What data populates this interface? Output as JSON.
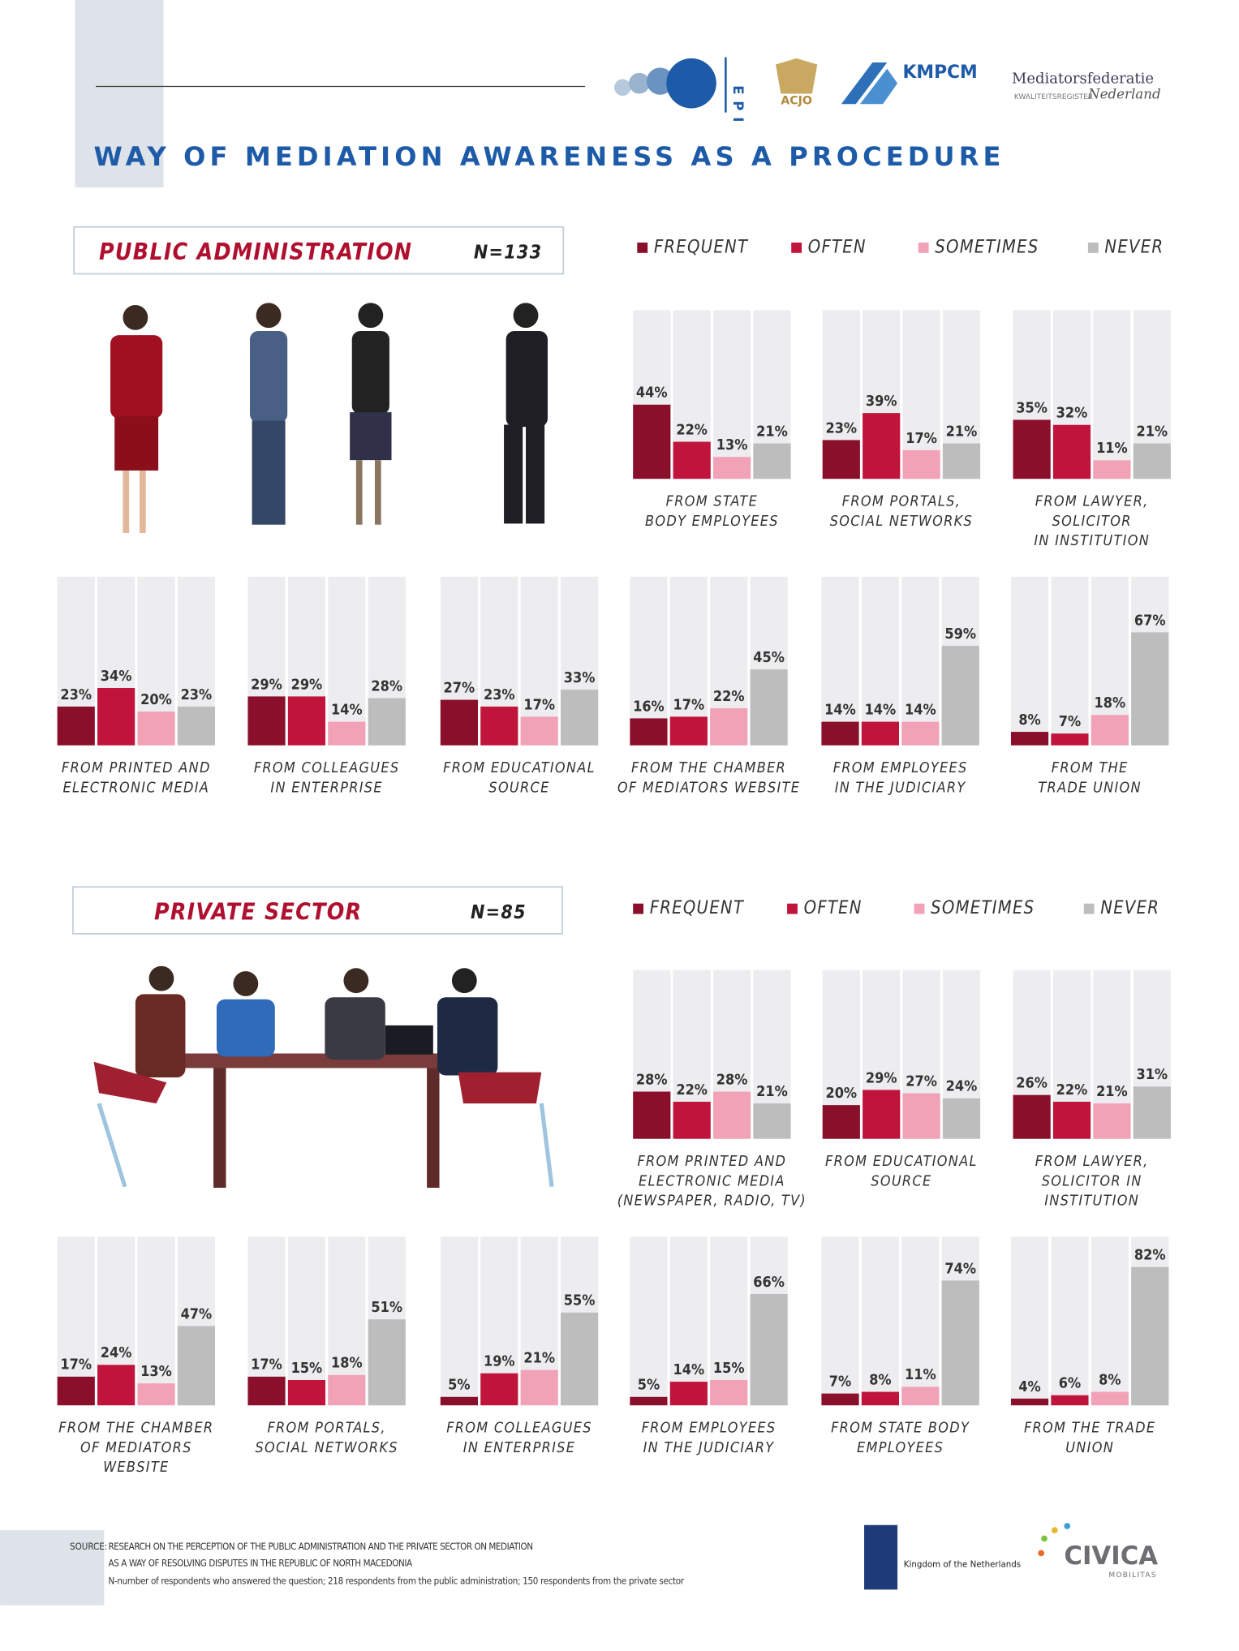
{
  "title": "WAY OF MEDIATION AWARENESS AS A PROCEDURE",
  "logos": {
    "epi": "EPI",
    "acjo": "ACJO",
    "kmpcm": "KMPCM",
    "mf_top": "Mediatorsfederatie",
    "mf_register": "KWALITEITSREGISTER",
    "mf_bottom": "Nederland",
    "netherlands": "Kingdom of the Netherlands",
    "civica": "CIVICA",
    "mobilitas": "MOBILITAS"
  },
  "sections": [
    {
      "name": "PUBLIC ADMINISTRATION",
      "n": "N=133",
      "legend": [
        {
          "name": "FREQUENT",
          "color": "#8a0f2b"
        },
        {
          "name": "OFTEN",
          "color": "#c0143c"
        },
        {
          "name": "SOMETIMES",
          "color": "#f2a2b7"
        },
        {
          "name": "NEVER",
          "color": "#bdbdbd"
        }
      ],
      "charts": [
        {
          "type": "bar",
          "title": [
            "FROM STATE",
            "BODY EMPLOYEES"
          ],
          "values": [
            44,
            22,
            13,
            21
          ],
          "value_labels": [
            "44%",
            "22%",
            "13%",
            "21%"
          ],
          "ylim": [
            0,
            100
          ]
        },
        {
          "type": "bar",
          "title": [
            "FROM PORTALS,",
            "SOCIAL NETWORKS"
          ],
          "values": [
            23,
            39,
            17,
            21
          ],
          "value_labels": [
            "23%",
            "39%",
            "17%",
            "21%"
          ],
          "ylim": [
            0,
            100
          ]
        },
        {
          "type": "bar",
          "title": [
            "FROM LAWYER,",
            "SOLICITOR",
            "IN INSTITUTION"
          ],
          "values": [
            35,
            32,
            11,
            21
          ],
          "value_labels": [
            "35%",
            "32%",
            "11%",
            "21%"
          ],
          "ylim": [
            0,
            100
          ]
        },
        {
          "type": "bar",
          "title": [
            "FROM PRINTED AND",
            "ELECTRONIC MEDIA"
          ],
          "values": [
            23,
            34,
            20,
            23
          ],
          "value_labels": [
            "23%",
            "34%",
            "20%",
            "23%"
          ],
          "ylim": [
            0,
            100
          ]
        },
        {
          "type": "bar",
          "title": [
            "FROM COLLEAGUES",
            "IN ENTERPRISE"
          ],
          "values": [
            29,
            29,
            14,
            28
          ],
          "value_labels": [
            "29%",
            "29%",
            "14%",
            "28%"
          ],
          "ylim": [
            0,
            100
          ]
        },
        {
          "type": "bar",
          "title": [
            "FROM EDUCATIONAL",
            "SOURCE"
          ],
          "values": [
            27,
            23,
            17,
            33
          ],
          "value_labels": [
            "27%",
            "23%",
            "17%",
            "33%"
          ],
          "ylim": [
            0,
            100
          ]
        },
        {
          "type": "bar",
          "title": [
            "FROM THE CHAMBER",
            "OF MEDIATORS WEBSITE"
          ],
          "values": [
            16,
            17,
            22,
            45
          ],
          "value_labels": [
            "16%",
            "17%",
            "22%",
            "45%"
          ],
          "ylim": [
            0,
            100
          ]
        },
        {
          "type": "bar",
          "title": [
            "FROM EMPLOYEES",
            "IN THE JUDICIARY"
          ],
          "values": [
            14,
            14,
            14,
            59
          ],
          "value_labels": [
            "14%",
            "14%",
            "14%",
            "59%"
          ],
          "ylim": [
            0,
            100
          ]
        },
        {
          "type": "bar",
          "title": [
            "FROM THE",
            "TRADE UNION"
          ],
          "values": [
            8,
            7,
            18,
            67
          ],
          "value_labels": [
            "8%",
            "7%",
            "18%",
            "67%"
          ],
          "ylim": [
            0,
            100
          ]
        }
      ]
    },
    {
      "name": "PRIVATE SECTOR",
      "n": "N=85",
      "legend": [
        {
          "name": "FREQUENT",
          "color": "#8a0f2b"
        },
        {
          "name": "OFTEN",
          "color": "#c0143c"
        },
        {
          "name": "SOMETIMES",
          "color": "#f2a2b7"
        },
        {
          "name": "NEVER",
          "color": "#bdbdbd"
        }
      ],
      "charts": [
        {
          "type": "bar",
          "title": [
            "FROM PRINTED AND",
            "ELECTRONIC MEDIA",
            "(NEWSPAPER, RADIO, TV)"
          ],
          "values": [
            28,
            22,
            28,
            21
          ],
          "value_labels": [
            "28%",
            "22%",
            "28%",
            "21%"
          ],
          "ylim": [
            0,
            100
          ]
        },
        {
          "type": "bar",
          "title": [
            "FROM EDUCATIONAL",
            "SOURCE"
          ],
          "values": [
            20,
            29,
            27,
            24
          ],
          "value_labels": [
            "20%",
            "29%",
            "27%",
            "24%"
          ],
          "ylim": [
            0,
            100
          ]
        },
        {
          "type": "bar",
          "title": [
            "FROM LAWYER,",
            "SOLICITOR IN",
            "INSTITUTION"
          ],
          "values": [
            26,
            22,
            21,
            31
          ],
          "value_labels": [
            "26%",
            "22%",
            "21%",
            "31%"
          ],
          "ylim": [
            0,
            100
          ]
        },
        {
          "type": "bar",
          "title": [
            "FROM THE CHAMBER",
            "OF MEDIATORS",
            "WEBSITE"
          ],
          "values": [
            17,
            24,
            13,
            47
          ],
          "value_labels": [
            "17%",
            "24%",
            "13%",
            "47%"
          ],
          "ylim": [
            0,
            100
          ]
        },
        {
          "type": "bar",
          "title": [
            "FROM PORTALS,",
            "SOCIAL NETWORKS"
          ],
          "values": [
            17,
            15,
            18,
            51
          ],
          "value_labels": [
            "17%",
            "15%",
            "18%",
            "51%"
          ],
          "ylim": [
            0,
            100
          ]
        },
        {
          "type": "bar",
          "title": [
            "FROM COLLEAGUES",
            "IN ENTERPRISE"
          ],
          "values": [
            5,
            19,
            21,
            55
          ],
          "value_labels": [
            "5%",
            "19%",
            "21%",
            "55%"
          ],
          "ylim": [
            0,
            100
          ]
        },
        {
          "type": "bar",
          "title": [
            "FROM EMPLOYEES",
            "IN THE JUDICIARY"
          ],
          "values": [
            5,
            14,
            15,
            66
          ],
          "value_labels": [
            "5%",
            "14%",
            "15%",
            "66%"
          ],
          "ylim": [
            0,
            100
          ]
        },
        {
          "type": "bar",
          "title": [
            "FROM STATE BODY",
            "EMPLOYEES"
          ],
          "values": [
            7,
            8,
            11,
            74
          ],
          "value_labels": [
            "7%",
            "8%",
            "11%",
            "74%"
          ],
          "ylim": [
            0,
            100
          ]
        },
        {
          "type": "bar",
          "title": [
            "FROM THE TRADE",
            "UNION"
          ],
          "values": [
            4,
            6,
            8,
            82
          ],
          "value_labels": [
            "4%",
            "6%",
            "8%",
            "82%"
          ],
          "ylim": [
            0,
            100
          ]
        }
      ]
    }
  ],
  "source": {
    "label": "SOURCE:",
    "lines": [
      "RESEARCH ON THE PERCEPTION OF THE PUBLIC ADMINISTRATION AND THE PRIVATE SECTOR ON MEDIATION",
      "AS A WAY OF RESOLVING DISPUTES IN THE REPUBLIC OF NORTH MACEDONIA",
      "N-number of respondents who answered the question; 218 respondents from the public administration; 150 respondents from the private sector"
    ]
  }
}
